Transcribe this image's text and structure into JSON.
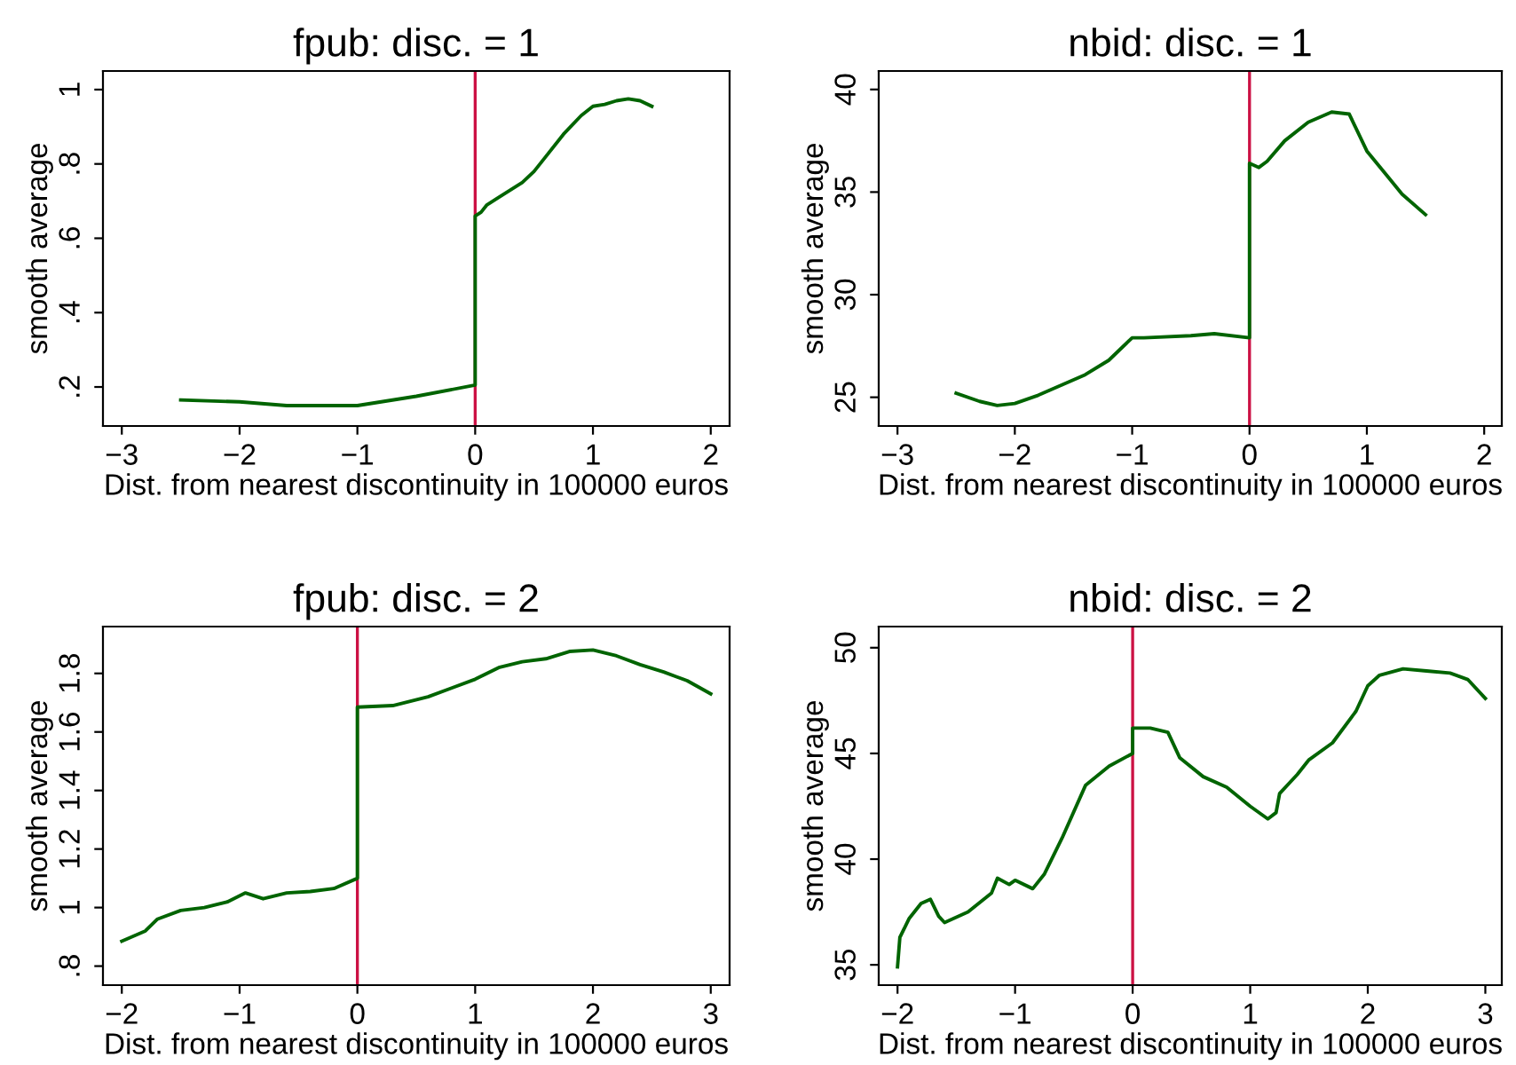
{
  "chart_data": [
    {
      "type": "line",
      "title": "fpub: disc. = 1",
      "xlabel": "Dist. from nearest discontinuity in 100000 euros",
      "ylabel": "smooth average",
      "series": [
        {
          "color": "#006400",
          "x": [
            -2.5,
            -2.0,
            -1.6,
            -1.2,
            -1.0,
            -0.5,
            0,
            0,
            0.05,
            0.1,
            0.2,
            0.4,
            0.5,
            0.6,
            0.75,
            0.9,
            1.0,
            1.1,
            1.2,
            1.3,
            1.4,
            1.5
          ],
          "values": [
            0.165,
            0.16,
            0.15,
            0.15,
            0.15,
            0.175,
            0.205,
            0.66,
            0.67,
            0.69,
            0.71,
            0.75,
            0.78,
            0.82,
            0.88,
            0.93,
            0.955,
            0.96,
            0.97,
            0.975,
            0.97,
            0.955
          ]
        }
      ],
      "xlim": [
        -3.16,
        2.16
      ],
      "xticks": [
        {
          "value": -3,
          "label": "−3"
        },
        {
          "value": -2,
          "label": "−2"
        },
        {
          "value": -1,
          "label": "−1"
        },
        0,
        1,
        2
      ],
      "ylim": [
        0.095,
        1.05
      ],
      "yticks": [
        {
          "value": 0.2,
          "label": ".2"
        },
        {
          "value": 0.4,
          "label": ".4"
        },
        {
          "value": 0.6,
          "label": ".6"
        },
        {
          "value": 0.8,
          "label": ".8"
        },
        1
      ],
      "ref_lines": [
        {
          "axis": "x",
          "value": 0,
          "color": "#cc1144"
        }
      ],
      "grid": false
    },
    {
      "type": "line",
      "title": "nbid: disc. = 1",
      "xlabel": "Dist. from nearest discontinuity in 100000 euros",
      "ylabel": "smooth average",
      "series": [
        {
          "color": "#006400",
          "x": [
            -2.5,
            -2.3,
            -2.15,
            -2.0,
            -1.8,
            -1.6,
            -1.4,
            -1.2,
            -1.0,
            -0.9,
            -0.5,
            -0.3,
            0,
            0,
            0.08,
            0.15,
            0.3,
            0.5,
            0.7,
            0.85,
            1.0,
            1.2,
            1.3,
            1.5
          ],
          "values": [
            25.2,
            24.8,
            24.6,
            24.7,
            25.1,
            25.6,
            26.1,
            26.8,
            27.9,
            27.9,
            28.0,
            28.1,
            27.9,
            36.4,
            36.2,
            36.5,
            37.5,
            38.4,
            38.9,
            38.8,
            37.0,
            35.6,
            34.9,
            33.9
          ]
        }
      ],
      "xlim": [
        -3.16,
        2.15
      ],
      "xticks": [
        {
          "value": -3,
          "label": "−3"
        },
        {
          "value": -2,
          "label": "−2"
        },
        {
          "value": -1,
          "label": "−1"
        },
        0,
        1,
        2
      ],
      "ylim": [
        23.6,
        40.9
      ],
      "yticks": [
        25,
        30,
        35,
        40
      ],
      "ref_lines": [
        {
          "axis": "x",
          "value": 0,
          "color": "#cc1144"
        }
      ],
      "grid": false
    },
    {
      "type": "line",
      "title": "fpub: disc. = 2",
      "xlabel": "Dist. from nearest discontinuity in 100000 euros",
      "ylabel": "smooth average",
      "series": [
        {
          "color": "#006400",
          "x": [
            -2.0,
            -1.8,
            -1.7,
            -1.5,
            -1.3,
            -1.1,
            -0.95,
            -0.8,
            -0.6,
            -0.4,
            -0.2,
            0,
            0,
            0.3,
            0.6,
            0.8,
            1.0,
            1.2,
            1.4,
            1.6,
            1.8,
            2.0,
            2.2,
            2.4,
            2.6,
            2.8,
            3.0
          ],
          "values": [
            0.885,
            0.92,
            0.96,
            0.99,
            1.0,
            1.02,
            1.05,
            1.03,
            1.05,
            1.055,
            1.065,
            1.1,
            1.685,
            1.69,
            1.72,
            1.75,
            1.78,
            1.82,
            1.84,
            1.85,
            1.875,
            1.88,
            1.86,
            1.83,
            1.805,
            1.775,
            1.73
          ]
        }
      ],
      "xlim": [
        -2.16,
        3.16
      ],
      "xticks": [
        {
          "value": -2,
          "label": "−2"
        },
        {
          "value": -1,
          "label": "−1"
        },
        0,
        1,
        2,
        3
      ],
      "ylim": [
        0.735,
        1.96
      ],
      "yticks": [
        {
          "value": 0.8,
          "label": ".8"
        },
        1,
        1.2,
        1.4,
        1.6,
        1.8
      ],
      "ref_lines": [
        {
          "axis": "x",
          "value": 0,
          "color": "#cc1144"
        }
      ],
      "grid": false
    },
    {
      "type": "line",
      "title": "nbid: disc. = 2",
      "xlabel": "Dist. from nearest discontinuity in 100000 euros",
      "ylabel": "smooth average",
      "series": [
        {
          "color": "#006400",
          "x": [
            -2.0,
            -1.98,
            -1.9,
            -1.8,
            -1.72,
            -1.65,
            -1.6,
            -1.4,
            -1.2,
            -1.15,
            -1.05,
            -1.0,
            -0.85,
            -0.75,
            -0.6,
            -0.4,
            -0.2,
            0,
            0,
            0.15,
            0.3,
            0.4,
            0.6,
            0.8,
            1.0,
            1.15,
            1.22,
            1.25,
            1.4,
            1.5,
            1.7,
            1.9,
            2.0,
            2.1,
            2.3,
            2.5,
            2.7,
            2.85,
            3.0
          ],
          "values": [
            34.9,
            36.3,
            37.2,
            37.9,
            38.1,
            37.3,
            37.0,
            37.5,
            38.4,
            39.1,
            38.8,
            39.0,
            38.6,
            39.3,
            41.0,
            43.5,
            44.4,
            45.0,
            46.2,
            46.2,
            46.0,
            44.8,
            43.9,
            43.4,
            42.5,
            41.9,
            42.2,
            43.1,
            44.0,
            44.7,
            45.5,
            47.0,
            48.2,
            48.7,
            49.0,
            48.9,
            48.8,
            48.5,
            47.6
          ]
        }
      ],
      "xlim": [
        -2.16,
        3.14
      ],
      "xticks": [
        {
          "value": -2,
          "label": "−2"
        },
        {
          "value": -1,
          "label": "−1"
        },
        0,
        1,
        2,
        3
      ],
      "ylim": [
        34.04,
        51.0
      ],
      "yticks": [
        35,
        40,
        45,
        50
      ],
      "ref_lines": [
        {
          "axis": "x",
          "value": 0,
          "color": "#cc1144"
        }
      ],
      "grid": false
    }
  ]
}
